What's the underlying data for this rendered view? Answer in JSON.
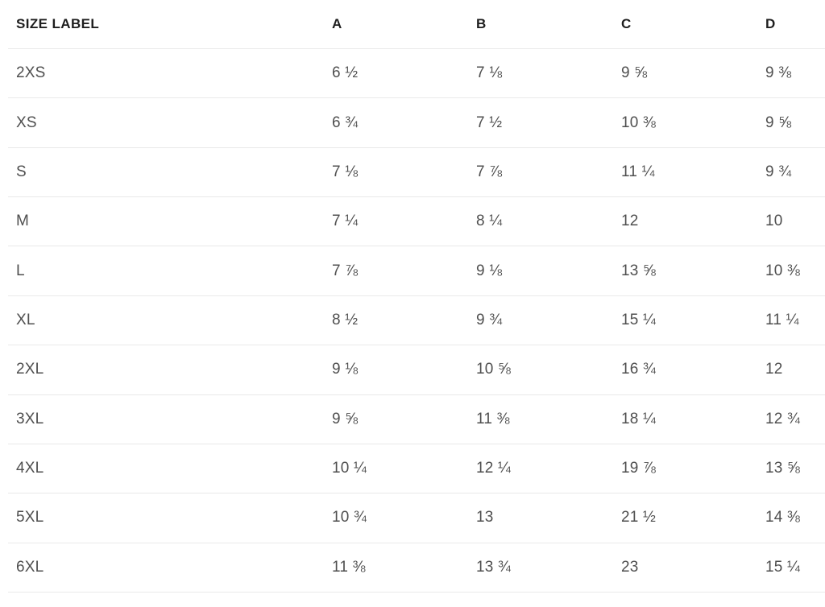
{
  "table": {
    "columns": [
      "SIZE LABEL",
      "A",
      "B",
      "C",
      "D"
    ],
    "rows": [
      {
        "label": "2XS",
        "values": [
          "6 ½",
          "7 ⅛",
          "9 ⅝",
          "9 ⅜"
        ]
      },
      {
        "label": "XS",
        "values": [
          "6 ¾",
          "7 ½",
          "10 ⅜",
          "9 ⅝"
        ]
      },
      {
        "label": "S",
        "values": [
          "7 ⅛",
          "7 ⅞",
          "11 ¼",
          "9 ¾"
        ]
      },
      {
        "label": "M",
        "values": [
          "7 ¼",
          "8 ¼",
          "12",
          "10"
        ]
      },
      {
        "label": "L",
        "values": [
          "7 ⅞",
          "9 ⅛",
          "13 ⅝",
          "10 ⅜"
        ]
      },
      {
        "label": "XL",
        "values": [
          "8 ½",
          "9 ¾",
          "15 ¼",
          "11 ¼"
        ]
      },
      {
        "label": "2XL",
        "values": [
          "9 ⅛",
          "10 ⅝",
          "16 ¾",
          "12"
        ]
      },
      {
        "label": "3XL",
        "values": [
          "9 ⅝",
          "11 ⅜",
          "18 ¼",
          "12 ¾"
        ]
      },
      {
        "label": "4XL",
        "values": [
          "10 ¼",
          "12 ¼",
          "19 ⅞",
          "13 ⅝"
        ]
      },
      {
        "label": "5XL",
        "values": [
          "10 ¾",
          "13",
          "21 ½",
          "14 ⅜"
        ]
      },
      {
        "label": "6XL",
        "values": [
          "11 ⅜",
          "13 ¾",
          "23",
          "15 ¼"
        ]
      }
    ]
  },
  "colors": {
    "background": "#ffffff",
    "header_text": "#1e1e1e",
    "body_text": "#4f4f4f",
    "divider": "#e9e9e9"
  }
}
